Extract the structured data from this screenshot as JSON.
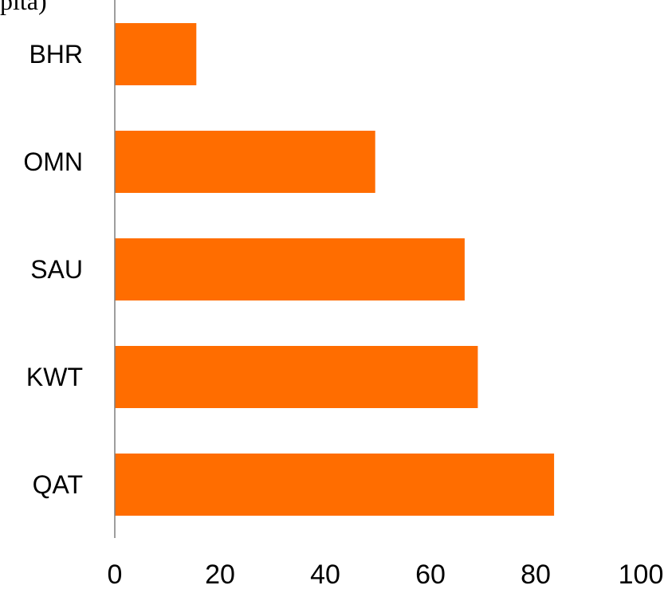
{
  "top_fragment": "pita)",
  "chart_data": {
    "type": "bar",
    "orientation": "horizontal",
    "categories": [
      "BHR",
      "OMN",
      "SAU",
      "KWT",
      "QAT"
    ],
    "values": [
      15.5,
      49.5,
      66.5,
      69,
      83.5
    ],
    "xlim": [
      0,
      100
    ],
    "x_ticks": [
      "0",
      "20",
      "40",
      "60",
      "80",
      "100"
    ],
    "bar_color": "#FF6D00",
    "axis_color": "#7F7F7F",
    "grid": false
  }
}
